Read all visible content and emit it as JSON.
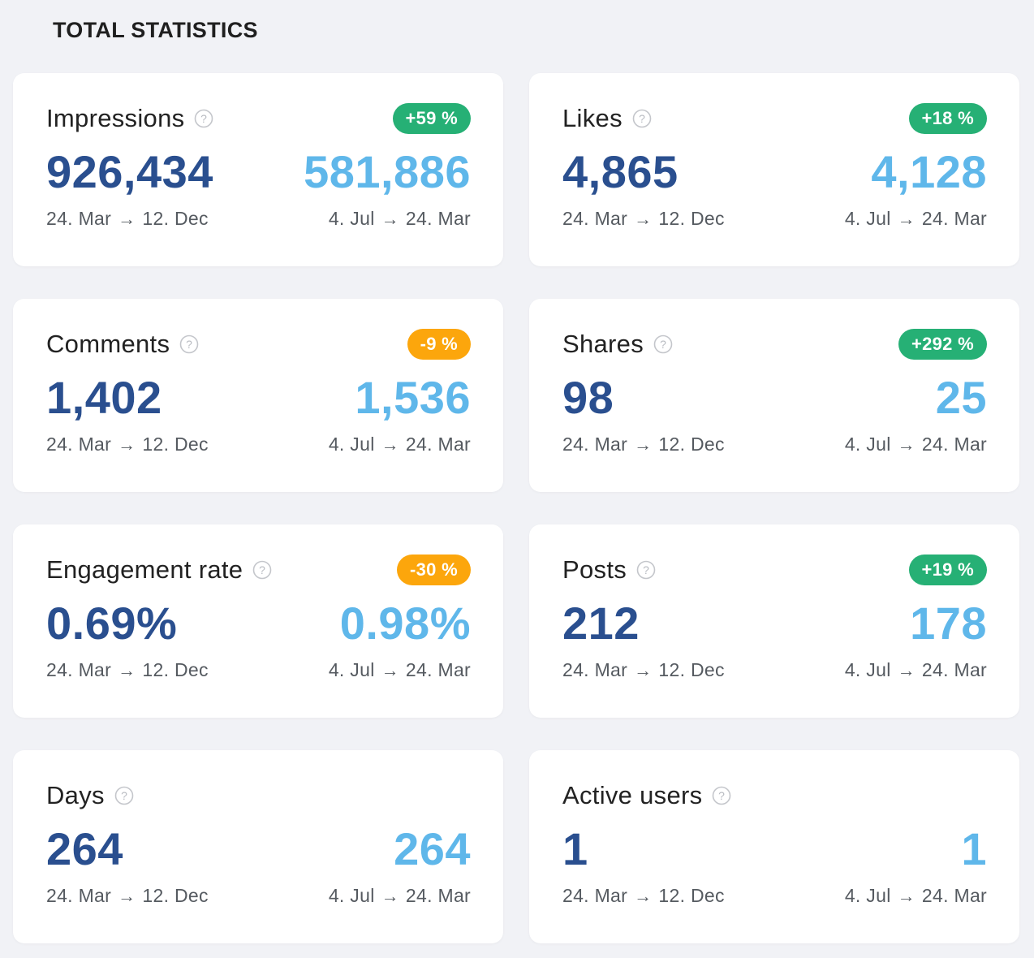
{
  "section": {
    "title": "TOTAL STATISTICS"
  },
  "arrow": "→",
  "cards": [
    {
      "title": "Impressions",
      "badge": "+59 %",
      "badge_type": "up",
      "current": "926,434",
      "previous": "581,886",
      "current_start": "24. Mar",
      "current_end": "12. Dec",
      "previous_start": "4. Jul",
      "previous_end": "24. Mar"
    },
    {
      "title": "Likes",
      "badge": "+18 %",
      "badge_type": "up",
      "current": "4,865",
      "previous": "4,128",
      "current_start": "24. Mar",
      "current_end": "12. Dec",
      "previous_start": "4. Jul",
      "previous_end": "24. Mar"
    },
    {
      "title": "Comments",
      "badge": "-9 %",
      "badge_type": "down",
      "current": "1,402",
      "previous": "1,536",
      "current_start": "24. Mar",
      "current_end": "12. Dec",
      "previous_start": "4. Jul",
      "previous_end": "24. Mar"
    },
    {
      "title": "Shares",
      "badge": "+292 %",
      "badge_type": "up",
      "current": "98",
      "previous": "25",
      "current_start": "24. Mar",
      "current_end": "12. Dec",
      "previous_start": "4. Jul",
      "previous_end": "24. Mar"
    },
    {
      "title": "Engagement rate",
      "badge": "-30 %",
      "badge_type": "down",
      "current": "0.69%",
      "previous": "0.98%",
      "current_start": "24. Mar",
      "current_end": "12. Dec",
      "previous_start": "4. Jul",
      "previous_end": "24. Mar"
    },
    {
      "title": "Posts",
      "badge": "+19 %",
      "badge_type": "up",
      "current": "212",
      "previous": "178",
      "current_start": "24. Mar",
      "current_end": "12. Dec",
      "previous_start": "4. Jul",
      "previous_end": "24. Mar"
    },
    {
      "title": "Days",
      "badge": "",
      "badge_type": "none",
      "current": "264",
      "previous": "264",
      "current_start": "24. Mar",
      "current_end": "12. Dec",
      "previous_start": "4. Jul",
      "previous_end": "24. Mar"
    },
    {
      "title": "Active users",
      "badge": "",
      "badge_type": "none",
      "current": "1",
      "previous": "1",
      "current_start": "24. Mar",
      "current_end": "12. Dec",
      "previous_start": "4. Jul",
      "previous_end": "24. Mar"
    }
  ],
  "colors": {
    "background": "#f1f2f6",
    "card": "#ffffff",
    "current_value": "#2a4f8f",
    "previous_value": "#5fb7ea",
    "badge_up": "#26b075",
    "badge_down": "#fca60c"
  },
  "icons": {
    "help": "question-circle-icon",
    "arrow": "arrow-right-icon"
  }
}
